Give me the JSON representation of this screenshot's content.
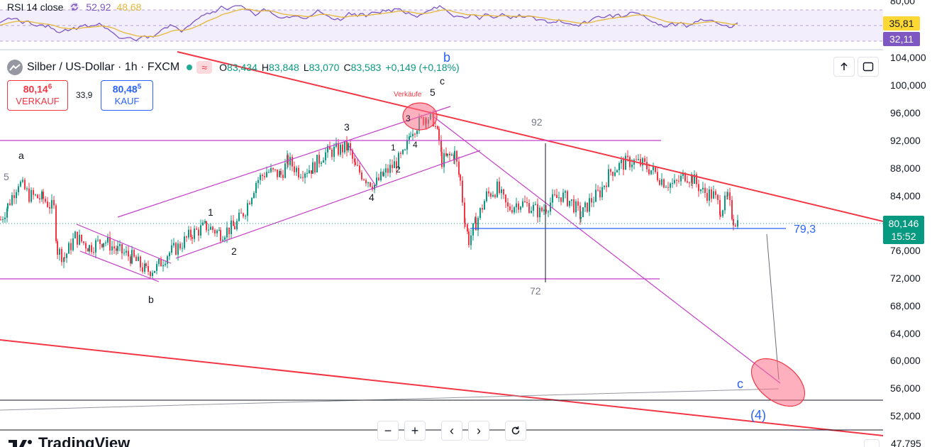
{
  "indicator": {
    "title": "RSI 14 close",
    "value1": "52,92",
    "value2": "48,68",
    "icon": "cycle-icon"
  },
  "symbol": {
    "title": "Silber / US-Dollar · 1h · FXCM",
    "pill": "≈",
    "ohlc": [
      {
        "k": "O",
        "v": "83,434"
      },
      {
        "k": "H",
        "v": "83,848"
      },
      {
        "k": "L",
        "v": "83,070"
      },
      {
        "k": "C",
        "v": "83,583"
      },
      {
        "k": "",
        "v": "+0,149 (+0,18%)"
      }
    ]
  },
  "trade": {
    "sell_price": "80,14",
    "sell_sup": "6",
    "sell_label": "VERKAUF",
    "spread": "33,9",
    "buy_price": "80,48",
    "buy_sup": "5",
    "buy_label": "KAUF"
  },
  "toolbar": {
    "up_icon": "arrow-up-icon",
    "fullscreen_icon": "fullscreen-icon"
  },
  "price_axis": {
    "ticks": [
      "80,00",
      "104,000",
      "100,000",
      "96,000",
      "92,000",
      "88,000",
      "84,000",
      "76,000",
      "72,000",
      "68,000",
      "64,000",
      "60,000",
      "56,000",
      "52,000"
    ],
    "rsi_yellow": "35,81",
    "rsi_purple": "32,11",
    "last_price": "80,146",
    "countdown": "15:52",
    "bottom_tick": "47,795"
  },
  "nav": {
    "zoom_out": "−",
    "zoom_in": "+",
    "back": "‹",
    "forward": "›",
    "reset_icon": "reset-icon"
  },
  "brand": {
    "name": "TradingView"
  },
  "colors": {
    "up": "#089981",
    "down": "#f23645",
    "trendline": "#f23645",
    "channel": "#c43ec9",
    "rsi_line": "#7e57c2",
    "rsi_ma": "#e5b83a",
    "target": "#ff6f8a",
    "label_blue": "#2962ff"
  },
  "chart_data": {
    "type": "candlestick",
    "title": "Silber / US-Dollar · 1h · FXCM",
    "y_axis": {
      "min": 50,
      "max": 106,
      "ticks": [
        52,
        56,
        60,
        64,
        68,
        72,
        76,
        80,
        84,
        88,
        92,
        96,
        100,
        104
      ]
    },
    "price_series": [
      [
        0,
        80.5
      ],
      [
        10,
        82.5
      ],
      [
        25,
        86.0
      ],
      [
        40,
        84.0
      ],
      [
        60,
        83.5
      ],
      [
        75,
        82.0
      ],
      [
        80,
        76.0
      ],
      [
        90,
        75.0
      ],
      [
        105,
        78.0
      ],
      [
        125,
        76.5
      ],
      [
        145,
        77.5
      ],
      [
        165,
        76.0
      ],
      [
        185,
        75.0
      ],
      [
        205,
        73.0
      ],
      [
        220,
        73.5
      ],
      [
        235,
        75.5
      ],
      [
        250,
        76.5
      ],
      [
        270,
        78.5
      ],
      [
        290,
        79.5
      ],
      [
        310,
        78.5
      ],
      [
        330,
        79.5
      ],
      [
        345,
        82.0
      ],
      [
        360,
        86.0
      ],
      [
        375,
        87.5
      ],
      [
        395,
        87.0
      ],
      [
        405,
        89.0
      ],
      [
        420,
        87.5
      ],
      [
        440,
        88.0
      ],
      [
        455,
        90.0
      ],
      [
        470,
        90.5
      ],
      [
        490,
        91.0
      ],
      [
        500,
        88.0
      ],
      [
        515,
        86.5
      ],
      [
        527,
        85.5
      ],
      [
        540,
        87.0
      ],
      [
        555,
        88.5
      ],
      [
        570,
        90.0
      ],
      [
        578,
        93.5
      ],
      [
        590,
        94.5
      ],
      [
        600,
        95.5
      ],
      [
        610,
        95.0
      ],
      [
        618,
        92.0
      ],
      [
        622,
        89.0
      ],
      [
        630,
        89.5
      ],
      [
        640,
        90.0
      ],
      [
        648,
        86.0
      ],
      [
        655,
        80.0
      ],
      [
        660,
        77.5
      ],
      [
        670,
        80.0
      ],
      [
        685,
        84.0
      ],
      [
        700,
        85.0
      ],
      [
        715,
        82.0
      ],
      [
        730,
        83.0
      ],
      [
        745,
        82.5
      ],
      [
        760,
        81.5
      ],
      [
        775,
        83.0
      ],
      [
        790,
        84.0
      ],
      [
        805,
        83.0
      ],
      [
        818,
        81.0
      ],
      [
        830,
        83.0
      ],
      [
        845,
        84.5
      ],
      [
        860,
        87.5
      ],
      [
        875,
        88.5
      ],
      [
        890,
        89.0
      ],
      [
        905,
        88.5
      ],
      [
        920,
        87.5
      ],
      [
        935,
        86.0
      ],
      [
        950,
        85.5
      ],
      [
        965,
        87.0
      ],
      [
        975,
        86.5
      ],
      [
        990,
        84.5
      ],
      [
        1005,
        84.0
      ],
      [
        1015,
        82.0
      ],
      [
        1025,
        83.5
      ],
      [
        1033,
        80.5
      ],
      [
        1040,
        80.1
      ]
    ],
    "rsi": {
      "last": 32.11,
      "ma": 35.81,
      "axis_top_tick": 80
    },
    "horizontal_levels": [
      {
        "label": "92",
        "value": 92.4
      },
      {
        "label": "72",
        "value": 72.0
      },
      {
        "label": "79,3",
        "value": 79.3
      },
      {
        "label": "",
        "value": 54.5
      }
    ],
    "last_price": 80.146,
    "wave_labels": [
      "a",
      "b",
      "c",
      "5",
      "1",
      "2",
      "3",
      "4",
      "b",
      "(4)",
      "c"
    ],
    "annotations": [
      "Verkäufe"
    ]
  }
}
